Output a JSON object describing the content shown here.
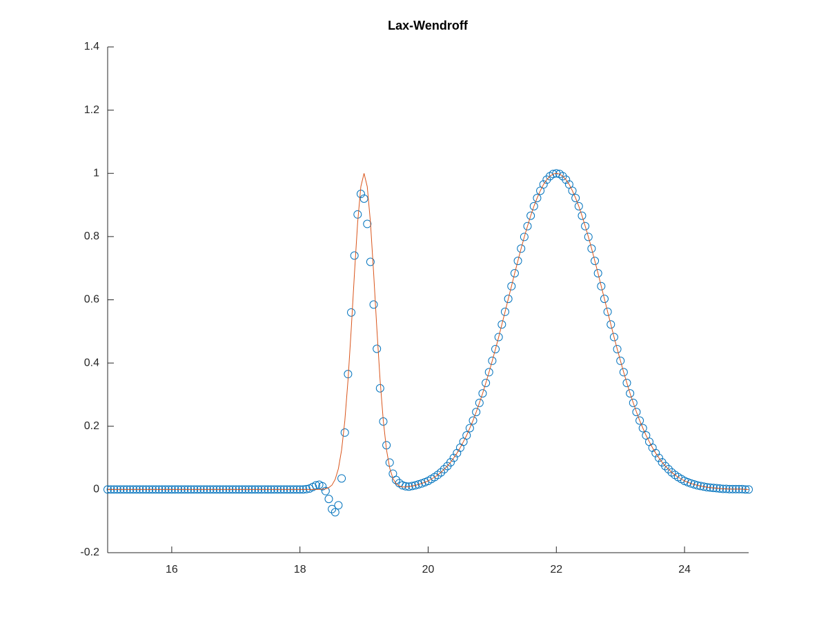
{
  "chart_data": {
    "type": "scatter",
    "title": "Lax-Wendroff",
    "xlim": [
      15,
      25
    ],
    "xticks": [
      16,
      18,
      20,
      22,
      24
    ],
    "ylim": [
      -0.2,
      1.4
    ],
    "yticks": [
      -0.2,
      0,
      0.2,
      0.4,
      0.6,
      0.8,
      1,
      1.2,
      1.4
    ],
    "grid": false,
    "x": [
      15,
      15.05,
      15.1,
      15.15,
      15.2,
      15.25,
      15.3,
      15.35,
      15.4,
      15.45,
      15.5,
      15.55,
      15.6,
      15.65,
      15.7,
      15.75,
      15.8,
      15.85,
      15.9,
      15.95,
      16,
      16.05,
      16.1,
      16.15,
      16.2,
      16.25,
      16.3,
      16.35,
      16.4,
      16.45,
      16.5,
      16.55,
      16.6,
      16.65,
      16.7,
      16.75,
      16.8,
      16.85,
      16.9,
      16.95,
      17,
      17.05,
      17.1,
      17.15,
      17.2,
      17.25,
      17.3,
      17.35,
      17.4,
      17.45,
      17.5,
      17.55,
      17.6,
      17.65,
      17.7,
      17.75,
      17.8,
      17.85,
      17.9,
      17.95,
      18,
      18.05,
      18.1,
      18.15,
      18.2,
      18.25,
      18.3,
      18.35,
      18.4,
      18.45,
      18.5,
      18.55,
      18.6,
      18.65,
      18.7,
      18.75,
      18.8,
      18.85,
      18.9,
      18.95,
      19,
      19.05,
      19.1,
      19.15,
      19.2,
      19.25,
      19.3,
      19.35,
      19.4,
      19.45,
      19.5,
      19.55,
      19.6,
      19.65,
      19.7,
      19.75,
      19.8,
      19.85,
      19.9,
      19.95,
      20,
      20.05,
      20.1,
      20.15,
      20.2,
      20.25,
      20.3,
      20.35,
      20.4,
      20.45,
      20.5,
      20.55,
      20.6,
      20.65,
      20.7,
      20.75,
      20.8,
      20.85,
      20.9,
      20.95,
      21,
      21.05,
      21.1,
      21.15,
      21.2,
      21.25,
      21.3,
      21.35,
      21.4,
      21.45,
      21.5,
      21.55,
      21.6,
      21.65,
      21.7,
      21.75,
      21.8,
      21.85,
      21.9,
      21.95,
      22,
      22.05,
      22.1,
      22.15,
      22.2,
      22.25,
      22.3,
      22.35,
      22.4,
      22.45,
      22.5,
      22.55,
      22.6,
      22.65,
      22.7,
      22.75,
      22.8,
      22.85,
      22.9,
      22.95,
      23,
      23.05,
      23.1,
      23.15,
      23.2,
      23.25,
      23.3,
      23.35,
      23.4,
      23.45,
      23.5,
      23.55,
      23.6,
      23.65,
      23.7,
      23.75,
      23.8,
      23.85,
      23.9,
      23.95,
      24,
      24.05,
      24.1,
      24.15,
      24.2,
      24.25,
      24.3,
      24.35,
      24.4,
      24.45,
      24.5,
      24.55,
      24.6,
      24.65,
      24.7,
      24.75,
      24.8,
      24.85,
      24.9,
      24.95,
      25
    ],
    "series": [
      {
        "style": "markers",
        "color": "#0072bd",
        "values": [
          0,
          0,
          0,
          0,
          0,
          0,
          0,
          0,
          0,
          0,
          0,
          0,
          0,
          0,
          0,
          0,
          0,
          0,
          0,
          0,
          0,
          0,
          0,
          0,
          0,
          0,
          0,
          0,
          0,
          0,
          0,
          0,
          0,
          0,
          0,
          0,
          0,
          0,
          0,
          0,
          0,
          0,
          0,
          0,
          0,
          0,
          0,
          0,
          0,
          0,
          0,
          0,
          0,
          0,
          0,
          0,
          0,
          0,
          0,
          0,
          0,
          0,
          0.001,
          0.003,
          0.008,
          0.013,
          0.015,
          0.01,
          -0.005,
          -0.03,
          -0.062,
          -0.072,
          -0.05,
          0.035,
          0.18,
          0.365,
          0.56,
          0.74,
          0.87,
          0.935,
          0.92,
          0.84,
          0.72,
          0.585,
          0.445,
          0.32,
          0.215,
          0.14,
          0.085,
          0.05,
          0.03,
          0.02,
          0.013,
          0.01,
          0.009,
          0.011,
          0.013,
          0.016,
          0.019,
          0.023,
          0.027,
          0.033,
          0.039,
          0.046,
          0.054,
          0.064,
          0.074,
          0.086,
          0.1,
          0.115,
          0.132,
          0.151,
          0.171,
          0.194,
          0.218,
          0.245,
          0.274,
          0.304,
          0.337,
          0.371,
          0.407,
          0.444,
          0.482,
          0.522,
          0.562,
          0.603,
          0.643,
          0.684,
          0.723,
          0.762,
          0.799,
          0.833,
          0.866,
          0.896,
          0.922,
          0.945,
          0.965,
          0.98,
          0.991,
          0.998,
          1,
          0.998,
          0.991,
          0.98,
          0.965,
          0.945,
          0.922,
          0.896,
          0.866,
          0.833,
          0.799,
          0.762,
          0.723,
          0.684,
          0.643,
          0.603,
          0.562,
          0.522,
          0.482,
          0.444,
          0.407,
          0.371,
          0.337,
          0.304,
          0.274,
          0.245,
          0.218,
          0.194,
          0.171,
          0.151,
          0.132,
          0.115,
          0.1,
          0.086,
          0.074,
          0.064,
          0.054,
          0.046,
          0.039,
          0.033,
          0.027,
          0.023,
          0.019,
          0.016,
          0.013,
          0.011,
          0.009,
          0.007,
          0.006,
          0.005,
          0.004,
          0.003,
          0.002,
          0.002,
          0.001,
          0.001,
          0.001,
          0.001,
          0.001,
          0,
          0
        ]
      },
      {
        "style": "line",
        "color": "#d95319",
        "values": [
          0,
          0,
          0,
          0,
          0,
          0,
          0,
          0,
          0,
          0,
          0,
          0,
          0,
          0,
          0,
          0,
          0,
          0,
          0,
          0,
          0,
          0,
          0,
          0,
          0,
          0,
          0,
          0,
          0,
          0,
          0,
          0,
          0,
          0,
          0,
          0,
          0,
          0,
          0,
          0,
          0,
          0,
          0,
          0,
          0,
          0,
          0,
          0,
          0,
          0,
          0,
          0,
          0,
          0,
          0,
          0,
          0,
          0,
          0,
          0,
          0,
          0,
          0,
          0,
          0,
          0,
          0,
          0.001,
          0.002,
          0.006,
          0.014,
          0.032,
          0.066,
          0.125,
          0.217,
          0.346,
          0.507,
          0.682,
          0.844,
          0.958,
          1,
          0.958,
          0.845,
          0.683,
          0.508,
          0.347,
          0.218,
          0.126,
          0.068,
          0.035,
          0.018,
          0.011,
          0.008,
          0.008,
          0.009,
          0.011,
          0.013,
          0.016,
          0.019,
          0.023,
          0.027,
          0.033,
          0.039,
          0.046,
          0.054,
          0.064,
          0.074,
          0.086,
          0.1,
          0.115,
          0.132,
          0.151,
          0.171,
          0.194,
          0.218,
          0.245,
          0.274,
          0.304,
          0.337,
          0.371,
          0.407,
          0.444,
          0.482,
          0.522,
          0.562,
          0.603,
          0.643,
          0.684,
          0.723,
          0.762,
          0.799,
          0.833,
          0.866,
          0.896,
          0.922,
          0.945,
          0.965,
          0.98,
          0.991,
          0.998,
          1,
          0.998,
          0.991,
          0.98,
          0.965,
          0.945,
          0.922,
          0.896,
          0.866,
          0.833,
          0.799,
          0.762,
          0.723,
          0.684,
          0.643,
          0.603,
          0.562,
          0.522,
          0.482,
          0.444,
          0.407,
          0.371,
          0.337,
          0.304,
          0.274,
          0.245,
          0.218,
          0.194,
          0.171,
          0.151,
          0.132,
          0.115,
          0.1,
          0.086,
          0.074,
          0.064,
          0.054,
          0.046,
          0.039,
          0.033,
          0.027,
          0.023,
          0.019,
          0.016,
          0.013,
          0.011,
          0.009,
          0.007,
          0.006,
          0.005,
          0.004,
          0.003,
          0.002,
          0.002,
          0.001,
          0.001,
          0.001,
          0.001,
          0.001,
          0,
          0
        ]
      }
    ]
  }
}
